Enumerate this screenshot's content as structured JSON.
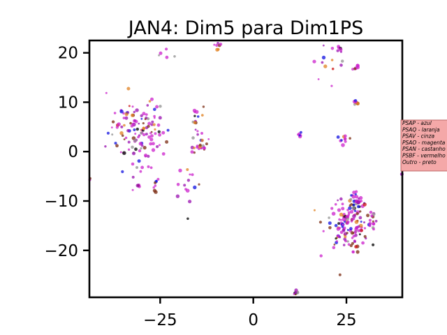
{
  "chart_data": {
    "type": "scatter",
    "title": "JAN4: Dim5 para Dim1PS",
    "xlabel": "",
    "ylabel": "",
    "xlim": [
      -44,
      40
    ],
    "ylim": [
      -29.5,
      22.5
    ],
    "xticks": [
      -25,
      0,
      25
    ],
    "xtick_labels": [
      "−25",
      "0",
      "25"
    ],
    "yticks": [
      -20,
      -10,
      0,
      10,
      20
    ],
    "ytick_labels": [
      "−20",
      "−10",
      "0",
      "10",
      "20"
    ],
    "grid": false,
    "legend_position": "right, outside plot",
    "legend_box": {
      "facecolor": "#f4a8a8",
      "edgecolor": "#b05050",
      "lines": [
        "PSAP - azul",
        "PSAQ - laranja",
        "PSAV - cinza",
        "PSAO - magenta",
        "PSAN - castanho",
        "PSBF - vermelho",
        "Outro - preto"
      ]
    },
    "series_colors": {
      "PSAP": "#1010e0",
      "PSAQ": "#e08020",
      "PSAV": "#909090",
      "PSAO": "#cc22cc",
      "PSAN": "#7a2a10",
      "PSBF": "#cc1010",
      "Outro": "#000000"
    },
    "clusters": [
      {
        "x": -31,
        "y": 4,
        "sx": 4,
        "sy": 3.5,
        "n": 130
      },
      {
        "x": -14,
        "y": 1,
        "sx": 1.2,
        "sy": 1.5,
        "n": 25
      },
      {
        "x": -15,
        "y": 7,
        "sx": 0.8,
        "sy": 1.2,
        "n": 12
      },
      {
        "x": -26,
        "y": -7,
        "sx": 0.5,
        "sy": 0.6,
        "n": 8
      },
      {
        "x": -31,
        "y": -7,
        "sx": 0.4,
        "sy": 0.5,
        "n": 5
      },
      {
        "x": -17,
        "y": -7,
        "sx": 1.5,
        "sy": 2.5,
        "n": 14
      },
      {
        "x": -23,
        "y": 20,
        "sx": 1.3,
        "sy": 0.8,
        "n": 5
      },
      {
        "x": -10,
        "y": 21.5,
        "sx": 1,
        "sy": 0.5,
        "n": 7
      },
      {
        "x": 20,
        "y": 17,
        "sx": 2,
        "sy": 2,
        "n": 12
      },
      {
        "x": 23,
        "y": 21,
        "sx": 0.4,
        "sy": 0.4,
        "n": 6
      },
      {
        "x": 27.5,
        "y": 17,
        "sx": 0.5,
        "sy": 0.5,
        "n": 6
      },
      {
        "x": 27.5,
        "y": 10,
        "sx": 0.6,
        "sy": 0.4,
        "n": 8
      },
      {
        "x": 24,
        "y": 3,
        "sx": 0.6,
        "sy": 0.8,
        "n": 10
      },
      {
        "x": 12.5,
        "y": 3.5,
        "sx": 0.3,
        "sy": 0.3,
        "n": 6
      },
      {
        "x": 25,
        "y": -14.5,
        "sx": 3,
        "sy": 2.6,
        "n": 140
      },
      {
        "x": 28,
        "y": -10,
        "sx": 1,
        "sy": 1,
        "n": 20
      },
      {
        "x": 32,
        "y": -14,
        "sx": 0.8,
        "sy": 1,
        "n": 12
      },
      {
        "x": 11.5,
        "y": -28.5,
        "sx": 0.4,
        "sy": 0.2,
        "n": 8
      },
      {
        "x": -44,
        "y": -5.5,
        "sx": 0.2,
        "sy": 0.3,
        "n": 4
      },
      {
        "x": 40,
        "y": -4.5,
        "sx": 0.2,
        "sy": 0.3,
        "n": 4
      }
    ]
  }
}
